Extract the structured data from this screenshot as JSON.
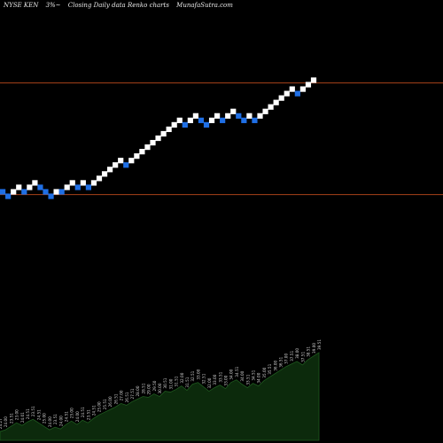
{
  "header": {
    "ticker": "NYSE KEN",
    "change": "3%~",
    "chart_label": "Closing Daily data  Renko  charts",
    "site": "MunafaSutra.com"
  },
  "chart_data": {
    "type": "renko",
    "colors": {
      "up_brick": "#ffffff",
      "down_brick": "#1f6fe5",
      "reference_line": "#a8421a",
      "volume_fill": "#0c2a0c",
      "volume_line": "#1f5a1f",
      "background": "#000000"
    },
    "bricks": [
      {
        "dir": "down",
        "level": 0
      },
      {
        "dir": "down",
        "level": -1
      },
      {
        "dir": "up",
        "level": 0
      },
      {
        "dir": "up",
        "level": 1
      },
      {
        "dir": "down",
        "level": 0
      },
      {
        "dir": "up",
        "level": 1
      },
      {
        "dir": "up",
        "level": 2
      },
      {
        "dir": "down",
        "level": 1
      },
      {
        "dir": "down",
        "level": 0
      },
      {
        "dir": "down",
        "level": -1
      },
      {
        "dir": "up",
        "level": 0
      },
      {
        "dir": "down",
        "level": 0
      },
      {
        "dir": "up",
        "level": 1
      },
      {
        "dir": "up",
        "level": 2
      },
      {
        "dir": "down",
        "level": 1
      },
      {
        "dir": "up",
        "level": 2
      },
      {
        "dir": "down",
        "level": 1
      },
      {
        "dir": "up",
        "level": 2
      },
      {
        "dir": "up",
        "level": 3
      },
      {
        "dir": "up",
        "level": 4
      },
      {
        "dir": "up",
        "level": 5
      },
      {
        "dir": "up",
        "level": 6
      },
      {
        "dir": "up",
        "level": 7
      },
      {
        "dir": "down",
        "level": 6
      },
      {
        "dir": "up",
        "level": 7
      },
      {
        "dir": "up",
        "level": 8
      },
      {
        "dir": "up",
        "level": 9
      },
      {
        "dir": "up",
        "level": 10
      },
      {
        "dir": "up",
        "level": 11
      },
      {
        "dir": "up",
        "level": 12
      },
      {
        "dir": "up",
        "level": 13
      },
      {
        "dir": "up",
        "level": 14
      },
      {
        "dir": "up",
        "level": 15
      },
      {
        "dir": "up",
        "level": 16
      },
      {
        "dir": "down",
        "level": 15
      },
      {
        "dir": "up",
        "level": 16
      },
      {
        "dir": "up",
        "level": 17
      },
      {
        "dir": "down",
        "level": 16
      },
      {
        "dir": "down",
        "level": 15
      },
      {
        "dir": "up",
        "level": 16
      },
      {
        "dir": "up",
        "level": 17
      },
      {
        "dir": "down",
        "level": 16
      },
      {
        "dir": "up",
        "level": 17
      },
      {
        "dir": "up",
        "level": 18
      },
      {
        "dir": "down",
        "level": 17
      },
      {
        "dir": "down",
        "level": 16
      },
      {
        "dir": "up",
        "level": 17
      },
      {
        "dir": "down",
        "level": 16
      },
      {
        "dir": "up",
        "level": 17
      },
      {
        "dir": "up",
        "level": 18
      },
      {
        "dir": "up",
        "level": 19
      },
      {
        "dir": "up",
        "level": 20
      },
      {
        "dir": "up",
        "level": 21
      },
      {
        "dir": "up",
        "level": 22
      },
      {
        "dir": "up",
        "level": 23
      },
      {
        "dir": "down",
        "level": 22
      },
      {
        "dir": "up",
        "level": 23
      },
      {
        "dir": "up",
        "level": 24
      },
      {
        "dir": "up",
        "level": 25
      }
    ],
    "reference_lines": [
      {
        "level": 25
      },
      {
        "level": 0
      }
    ],
    "price_labels": [
      "24.27",
      "24.00",
      "23.51",
      "23.00",
      "24.01",
      "24.51",
      "23.51",
      "24.51",
      "25.00",
      "24.00",
      "23.51",
      "24.00",
      "24.51",
      "25.00",
      "24.00",
      "24.51",
      "23.51",
      "24.51",
      "25.00",
      "25.51",
      "26.00",
      "26.51",
      "27.00",
      "26.51",
      "27.51",
      "28.00",
      "28.51",
      "29.00",
      "29.50",
      "30.00",
      "30.51",
      "31.00",
      "31.51",
      "32.00",
      "31.51",
      "32.51",
      "33.00",
      "32.51",
      "32.00",
      "33.00",
      "33.51",
      "33.00",
      "34.00",
      "34.51",
      "34.00",
      "33.51",
      "34.51",
      "34.00",
      "35.00",
      "35.51",
      "36.00",
      "36.51",
      "37.00",
      "37.51",
      "38.00",
      "37.51",
      "38.51",
      "39.00",
      "39.51"
    ],
    "volume_profile": [
      0.1,
      0.12,
      0.16,
      0.2,
      0.17,
      0.21,
      0.24,
      0.2,
      0.16,
      0.12,
      0.15,
      0.13,
      0.18,
      0.22,
      0.18,
      0.23,
      0.2,
      0.25,
      0.29,
      0.32,
      0.35,
      0.38,
      0.42,
      0.4,
      0.44,
      0.47,
      0.5,
      0.49,
      0.53,
      0.5,
      0.56,
      0.55,
      0.58,
      0.62,
      0.57,
      0.64,
      0.66,
      0.61,
      0.56,
      0.6,
      0.63,
      0.59,
      0.66,
      0.69,
      0.64,
      0.6,
      0.65,
      0.62,
      0.68,
      0.72,
      0.76,
      0.8,
      0.84,
      0.87,
      0.9,
      0.86,
      0.92,
      0.96,
      1.0
    ]
  }
}
